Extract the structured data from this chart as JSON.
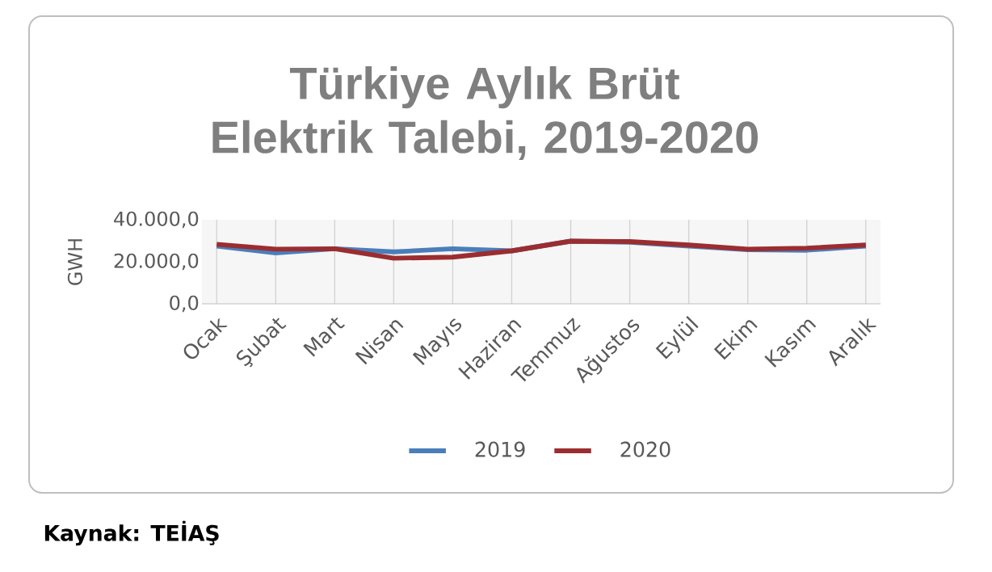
{
  "chart_data": {
    "type": "line",
    "title": "Türkiye Aylık Brüt Elektrik Talebi, 2019-2020",
    "ylabel": "GWH",
    "categories": [
      "Ocak",
      "Şubat",
      "Mart",
      "Nisan",
      "Mayıs",
      "Haziran",
      "Temmuz",
      "Ağustos",
      "Eylül",
      "Ekim",
      "Kasım",
      "Aralık"
    ],
    "series": [
      {
        "name": "2019",
        "color": "#4a7ebb",
        "values": [
          27500,
          24200,
          26200,
          24700,
          26200,
          25200,
          29800,
          29300,
          27500,
          25700,
          25500,
          27500
        ]
      },
      {
        "name": "2020",
        "color": "#9b2d30",
        "values": [
          28300,
          26000,
          26200,
          21700,
          22200,
          25200,
          29800,
          29600,
          28000,
          26000,
          26500,
          28000
        ]
      }
    ],
    "ylim": [
      0,
      40000
    ],
    "yticks": [
      {
        "value": 0,
        "label": "0,0"
      },
      {
        "value": 20000,
        "label": "20.000,0"
      },
      {
        "value": 40000,
        "label": "40.000,0"
      }
    ],
    "grid": "x",
    "legend": "bottom",
    "marker": "none",
    "line_style": "solid",
    "annotations": [
      "Kaynak: TEİAŞ"
    ]
  }
}
